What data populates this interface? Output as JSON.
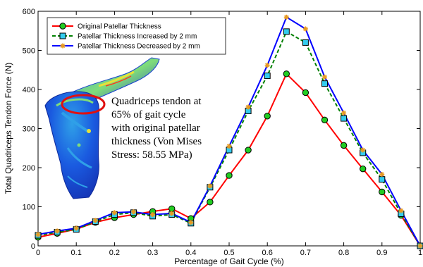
{
  "chart_data": {
    "type": "line",
    "xlabel": "Percentage of Gait Cycle (%)",
    "ylabel": "Total Quadriceps Tendon Force (N)",
    "xlim": [
      0,
      1
    ],
    "ylim": [
      0,
      600
    ],
    "xticks": [
      "0",
      "0.1",
      "0.2",
      "0.3",
      "0.4",
      "0.5",
      "0.6",
      "0.7",
      "0.8",
      "0.9",
      "1"
    ],
    "yticks": [
      "0",
      "100",
      "200",
      "300",
      "400",
      "500",
      "600"
    ],
    "grid": false,
    "legend_position": "top-left",
    "x": [
      0,
      0.05,
      0.1,
      0.15,
      0.2,
      0.25,
      0.3,
      0.35,
      0.4,
      0.45,
      0.5,
      0.55,
      0.6,
      0.65,
      0.7,
      0.75,
      0.8,
      0.85,
      0.9,
      0.95,
      1.0
    ],
    "series": [
      {
        "name": "Original Patellar Thickness",
        "color": "#ff0000",
        "marker": "circle-green",
        "values": [
          22,
          32,
          43,
          60,
          72,
          80,
          88,
          95,
          70,
          112,
          180,
          245,
          332,
          440,
          392,
          322,
          257,
          197,
          138,
          78,
          0
        ]
      },
      {
        "name": "Patellar Thickness Increased by 2 mm",
        "color": "#008000",
        "marker": "square-cyan",
        "values": [
          27,
          35,
          42,
          62,
          80,
          85,
          76,
          80,
          58,
          150,
          245,
          345,
          435,
          548,
          520,
          415,
          326,
          238,
          170,
          82,
          0
        ]
      },
      {
        "name": "Patellar Thickness Decreased by 2 mm",
        "color": "#0000ff",
        "marker": "star-orange",
        "values": [
          29,
          38,
          45,
          65,
          85,
          87,
          80,
          83,
          60,
          153,
          255,
          355,
          462,
          585,
          555,
          432,
          340,
          245,
          183,
          90,
          0
        ]
      }
    ],
    "annotation": {
      "lines": [
        "Quadriceps tendon at",
        "65% of gait cycle",
        "with original patellar",
        "thickness (Von Mises",
        "Stress: 58.55 MPa)"
      ]
    },
    "inset_image": {
      "description_icon": "fem-tendon-stress-icon",
      "colors": [
        "#1a3fd0",
        "#2fa0e8",
        "#7fdc7a",
        "#e6e23a",
        "#ff3a1a"
      ]
    }
  }
}
